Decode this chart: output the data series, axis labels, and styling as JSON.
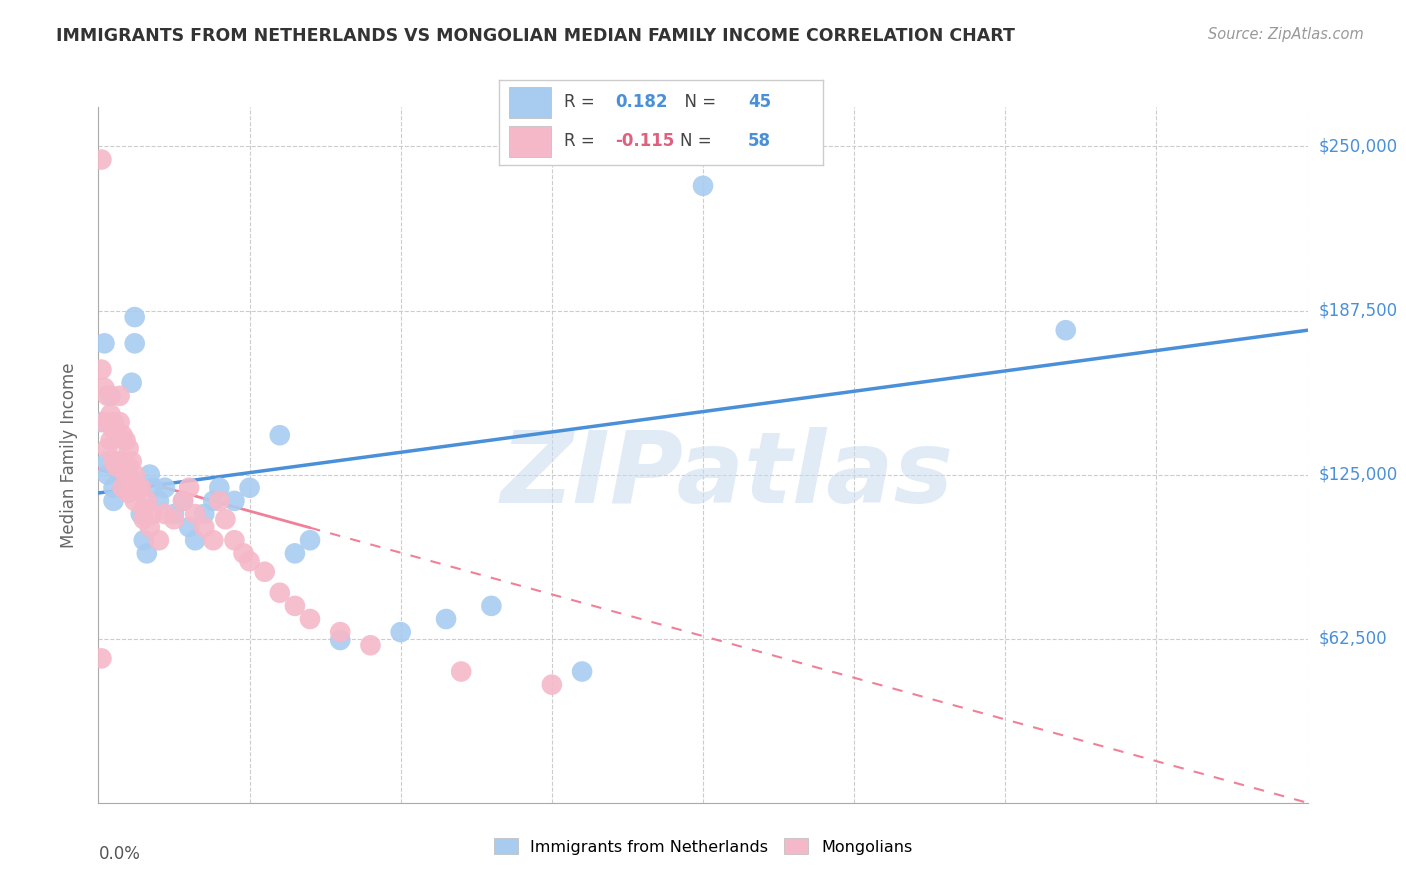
{
  "title": "IMMIGRANTS FROM NETHERLANDS VS MONGOLIAN MEDIAN FAMILY INCOME CORRELATION CHART",
  "source": "Source: ZipAtlas.com",
  "ylabel": "Median Family Income",
  "yticks": [
    0,
    62500,
    125000,
    187500,
    250000
  ],
  "ytick_labels": [
    "",
    "$62,500",
    "$125,000",
    "$187,500",
    "$250,000"
  ],
  "xlim": [
    0.0,
    0.4
  ],
  "ylim": [
    0,
    265000
  ],
  "blue_R": 0.182,
  "blue_N": 45,
  "pink_R": -0.115,
  "pink_N": 58,
  "blue_color": "#A8CCF0",
  "pink_color": "#F5B8C8",
  "blue_line_color": "#4A90D9",
  "pink_line_color": "#F08098",
  "watermark_text": "ZIPatlas",
  "legend_blue_label": "Immigrants from Netherlands",
  "legend_pink_label": "Mongolians",
  "blue_line_x0": 0.0,
  "blue_line_y0": 118000,
  "blue_line_x1": 0.4,
  "blue_line_y1": 180000,
  "pink_line_x0": 0.0,
  "pink_line_y0": 127000,
  "pink_line_x1": 0.4,
  "pink_line_y1": 0,
  "blue_points_x": [
    0.001,
    0.002,
    0.003,
    0.003,
    0.004,
    0.005,
    0.006,
    0.006,
    0.007,
    0.008,
    0.008,
    0.009,
    0.01,
    0.01,
    0.011,
    0.012,
    0.012,
    0.013,
    0.014,
    0.015,
    0.016,
    0.017,
    0.018,
    0.02,
    0.022,
    0.025,
    0.028,
    0.03,
    0.032,
    0.035,
    0.038,
    0.04,
    0.045,
    0.05,
    0.06,
    0.065,
    0.07,
    0.08,
    0.1,
    0.115,
    0.13,
    0.16,
    0.2,
    0.32,
    0.005
  ],
  "blue_points_y": [
    145000,
    175000,
    125000,
    130000,
    155000,
    120000,
    130000,
    140000,
    125000,
    120000,
    130000,
    125000,
    120000,
    125000,
    160000,
    175000,
    185000,
    120000,
    110000,
    100000,
    95000,
    125000,
    120000,
    115000,
    120000,
    110000,
    115000,
    105000,
    100000,
    110000,
    115000,
    120000,
    115000,
    120000,
    140000,
    95000,
    100000,
    62000,
    65000,
    70000,
    75000,
    50000,
    235000,
    180000,
    115000
  ],
  "pink_points_x": [
    0.001,
    0.001,
    0.002,
    0.002,
    0.003,
    0.003,
    0.004,
    0.004,
    0.004,
    0.005,
    0.005,
    0.005,
    0.006,
    0.006,
    0.007,
    0.007,
    0.007,
    0.008,
    0.008,
    0.008,
    0.009,
    0.009,
    0.01,
    0.01,
    0.01,
    0.011,
    0.011,
    0.012,
    0.012,
    0.013,
    0.014,
    0.015,
    0.015,
    0.016,
    0.017,
    0.018,
    0.02,
    0.022,
    0.025,
    0.028,
    0.03,
    0.032,
    0.035,
    0.038,
    0.04,
    0.042,
    0.045,
    0.048,
    0.05,
    0.055,
    0.06,
    0.065,
    0.07,
    0.08,
    0.09,
    0.12,
    0.15,
    0.001
  ],
  "pink_points_y": [
    245000,
    165000,
    158000,
    145000,
    155000,
    135000,
    148000,
    138000,
    145000,
    142000,
    130000,
    145000,
    140000,
    128000,
    155000,
    145000,
    130000,
    140000,
    130000,
    120000,
    138000,
    125000,
    135000,
    128000,
    118000,
    130000,
    122000,
    125000,
    115000,
    120000,
    120000,
    112000,
    108000,
    115000,
    105000,
    110000,
    100000,
    110000,
    108000,
    115000,
    120000,
    110000,
    105000,
    100000,
    115000,
    108000,
    100000,
    95000,
    92000,
    88000,
    80000,
    75000,
    70000,
    65000,
    60000,
    50000,
    45000,
    55000
  ]
}
